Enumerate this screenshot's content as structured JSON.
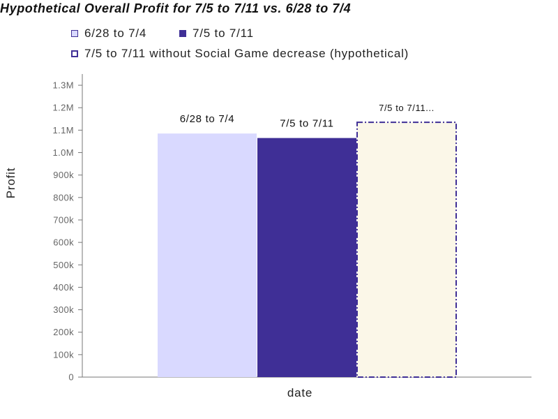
{
  "chart_data": {
    "type": "bar",
    "title": "Hypothetical Overall Profit for 7/5 to 7/11 vs. 6/28 to 7/4",
    "xlabel": "date",
    "ylabel": "Profit",
    "ylim": [
      0,
      1350000
    ],
    "yticks": [
      {
        "value": 0,
        "label": "0"
      },
      {
        "value": 100000,
        "label": "100k"
      },
      {
        "value": 200000,
        "label": "200k"
      },
      {
        "value": 300000,
        "label": "300k"
      },
      {
        "value": 400000,
        "label": "400k"
      },
      {
        "value": 500000,
        "label": "500k"
      },
      {
        "value": 600000,
        "label": "600k"
      },
      {
        "value": 700000,
        "label": "700k"
      },
      {
        "value": 800000,
        "label": "800k"
      },
      {
        "value": 900000,
        "label": "900k"
      },
      {
        "value": 1000000,
        "label": "1.0M"
      },
      {
        "value": 1100000,
        "label": "1.1M"
      },
      {
        "value": 1200000,
        "label": "1.2M"
      },
      {
        "value": 1300000,
        "label": "1.3M"
      }
    ],
    "grid": false,
    "legend_position": "top-left",
    "series": [
      {
        "name": "6/28 to 7/4",
        "value": 1085000,
        "data_label": "6/28 to 7/4",
        "fill": "#d9d9ff",
        "stroke": "#d9d9ff",
        "dashed": false
      },
      {
        "name": "7/5 to 7/11",
        "value": 1065000,
        "data_label": "7/5 to 7/11",
        "fill": "#3f2f96",
        "stroke": "#3f2f96",
        "dashed": false
      },
      {
        "name": "7/5 to 7/11 without Social Game decrease (hypothetical)",
        "value": 1135000,
        "data_label": "7/5 to 7/11...",
        "fill": "#fbf7e8",
        "stroke": "#3f2f96",
        "dashed": true
      }
    ]
  }
}
